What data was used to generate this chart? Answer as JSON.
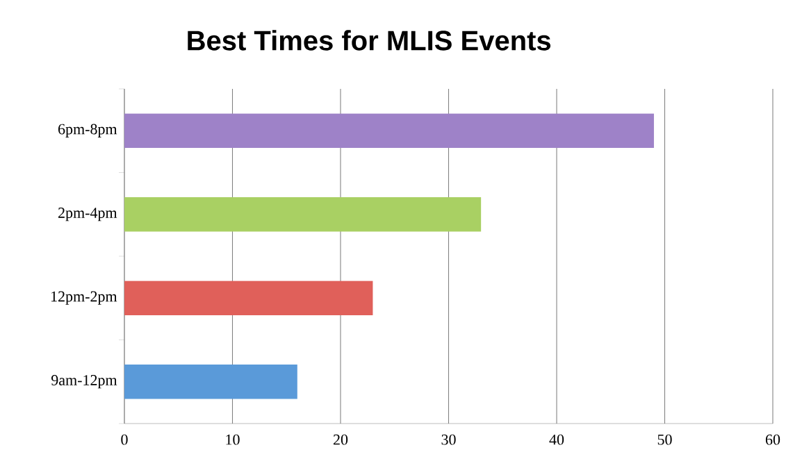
{
  "chart_data": {
    "type": "bar",
    "orientation": "horizontal",
    "title": "Best Times for MLIS Events",
    "categories": [
      "6pm-8pm",
      "2pm-4pm",
      "12pm-2pm",
      "9am-12pm"
    ],
    "values": [
      49,
      33,
      23,
      16
    ],
    "colors": [
      "#9e82c8",
      "#a9d063",
      "#e0605a",
      "#5a9ad9"
    ],
    "xlim": [
      0,
      60
    ],
    "xticks": [
      0,
      10,
      20,
      30,
      40,
      50,
      60
    ],
    "grid": "x"
  }
}
